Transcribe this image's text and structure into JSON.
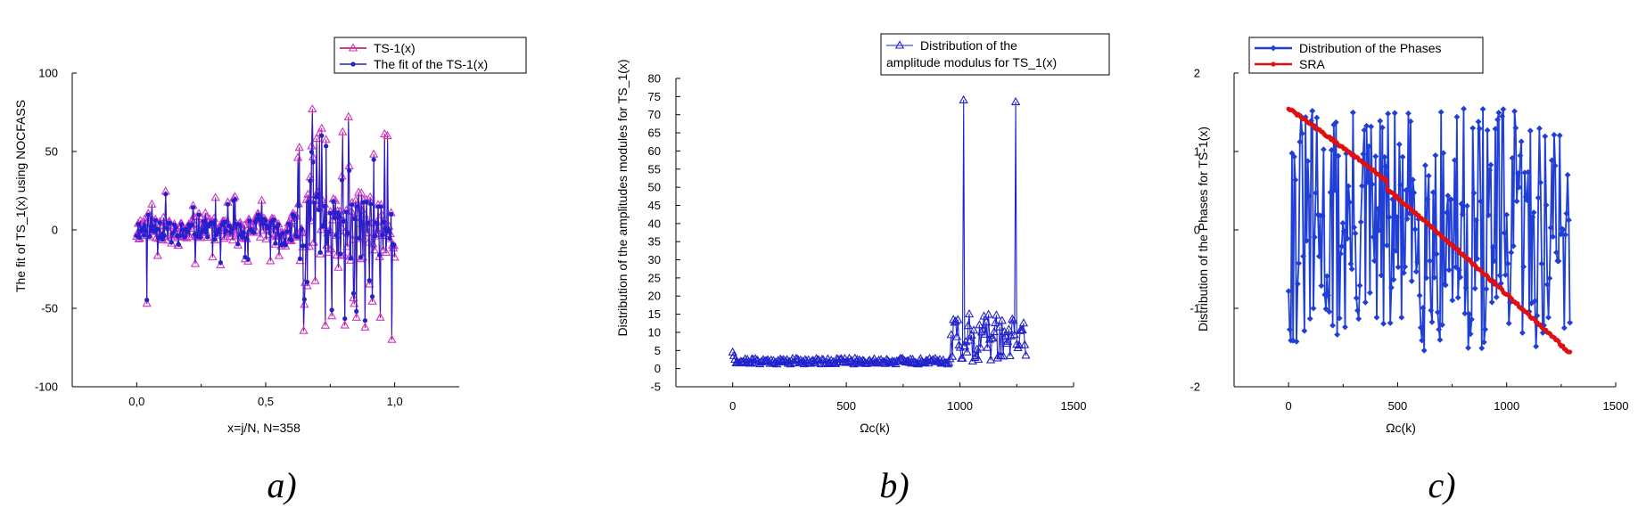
{
  "chart_data": [
    {
      "type": "line",
      "panel_label": "a)",
      "xlabel": "x=j/N,  N=358",
      "ylabel": "The fit of TS_1(x) using NOCFASS",
      "xlim": [
        -0.25,
        1.25
      ],
      "ylim": [
        -100,
        100
      ],
      "x_ticks": [
        "0,0",
        "0,5",
        "1,0"
      ],
      "x_tick_values": [
        0,
        0.5,
        1
      ],
      "y_ticks": [
        "100",
        "50",
        "0",
        "-50",
        "-100"
      ],
      "y_tick_values": [
        100,
        50,
        0,
        -50,
        -100
      ],
      "legend_position": "top-right",
      "series": [
        {
          "name": "TS-1(x)",
          "color": "#cc0033",
          "marker_color": "#cc33cc",
          "marker": "triangle",
          "generator": {
            "n": 358,
            "x0": 0,
            "x1": 1,
            "seed": 11,
            "kind": "signal"
          }
        },
        {
          "name": "The fit of the TS-1(x)",
          "color": "#2222cc",
          "marker": "dot",
          "generator": {
            "n": 358,
            "x0": 0,
            "x1": 1,
            "seed": 12,
            "kind": "fit"
          }
        }
      ],
      "notable_points": [
        {
          "x": 0.04,
          "y": -47
        },
        {
          "x": 0.68,
          "y": 77
        },
        {
          "x": 0.82,
          "y": 72
        },
        {
          "x": 0.99,
          "y": -70
        }
      ]
    },
    {
      "type": "line",
      "panel_label": "b)",
      "xlabel": "Ωc(k)",
      "ylabel": "Distribution of the amplitudes modules for TS_1(x)",
      "xlim": [
        -250,
        1500
      ],
      "ylim": [
        -5,
        80
      ],
      "x_ticks": [
        "0",
        "500",
        "1000",
        "1500"
      ],
      "x_tick_values": [
        0,
        500,
        1000,
        1500
      ],
      "y_ticks": [
        "80",
        "75",
        "70",
        "65",
        "60",
        "55",
        "50",
        "45",
        "40",
        "35",
        "30",
        "25",
        "20",
        "15",
        "10",
        "5",
        "0",
        "-5"
      ],
      "y_tick_values": [
        80,
        75,
        70,
        65,
        60,
        55,
        50,
        45,
        40,
        35,
        30,
        25,
        20,
        15,
        10,
        5,
        0,
        -5
      ],
      "legend_position": "top-right",
      "series": [
        {
          "name_lines": [
            "Distribution of the",
            "amplitude modulus for TS_1(x)"
          ],
          "color": "#2222cc",
          "marker": "triangle",
          "generator": {
            "n": 260,
            "x0": 0,
            "x1": 1290,
            "seed": 21,
            "kind": "amplitude"
          }
        }
      ],
      "notable_points": [
        {
          "x": 1015,
          "y": 74
        },
        {
          "x": 1245,
          "y": 73.5
        }
      ]
    },
    {
      "type": "line",
      "panel_label": "c)",
      "xlabel": "Ωc(k)",
      "ylabel": "Distribution of the Phases for TS-1(x)",
      "xlim": [
        -250,
        1500
      ],
      "ylim": [
        -2,
        2
      ],
      "x_ticks": [
        "0",
        "500",
        "1000",
        "1500"
      ],
      "x_tick_values": [
        0,
        500,
        1000,
        1500
      ],
      "y_ticks": [
        "2",
        "1",
        "0",
        "-1",
        "-2"
      ],
      "y_tick_values": [
        2,
        1,
        0,
        -1,
        -2
      ],
      "legend_position": "top-left",
      "series": [
        {
          "name": "Distribution of the Phases",
          "color": "#1f3fd6",
          "marker": "diamond",
          "generator": {
            "n": 250,
            "x0": 0,
            "x1": 1290,
            "seed": 31,
            "kind": "phase"
          }
        },
        {
          "name": "SRA",
          "color": "#e01010",
          "marker": "dot",
          "generator": {
            "n": 200,
            "x0": 0,
            "x1": 1290,
            "seed": 32,
            "kind": "sra",
            "y_start": 1.55,
            "y_end": -1.57
          }
        }
      ]
    }
  ]
}
